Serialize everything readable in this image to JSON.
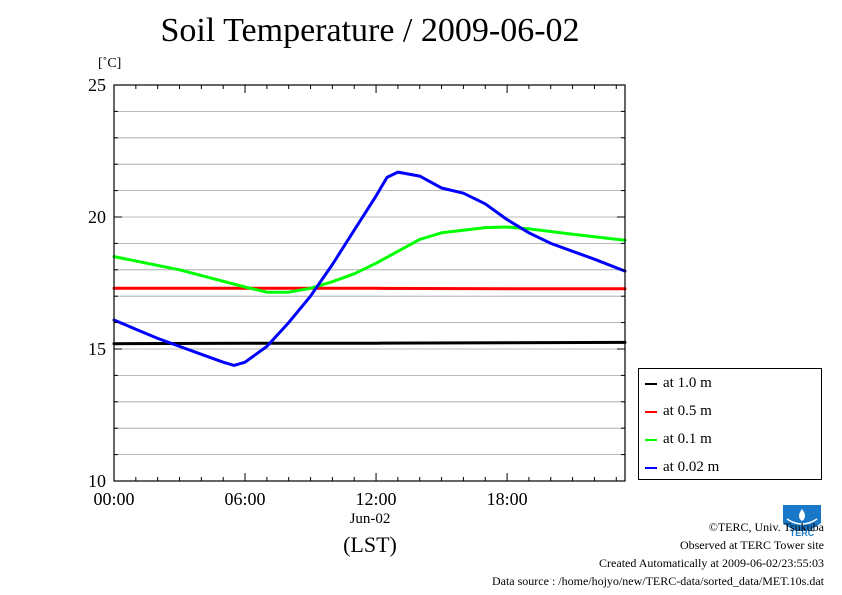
{
  "header": {
    "title": "Soil Temperature / 2009-06-02",
    "unit": "[˚C]"
  },
  "chart_data": {
    "type": "line",
    "title": "Soil Temperature / 2009-06-02",
    "ylabel": "[˚C]",
    "xlabel": "(LST)",
    "x_sublabel": "Jun-02",
    "xlim": [
      0,
      23.4
    ],
    "ylim": [
      10,
      25
    ],
    "x_ticks": [
      {
        "value": 0,
        "label": "00:00"
      },
      {
        "value": 6,
        "label": "06:00"
      },
      {
        "value": 12,
        "label": "12:00"
      },
      {
        "value": 18,
        "label": "18:00"
      }
    ],
    "y_ticks": [
      {
        "value": 10,
        "label": "10"
      },
      {
        "value": 15,
        "label": "15"
      },
      {
        "value": 20,
        "label": "20"
      },
      {
        "value": 25,
        "label": "25"
      }
    ],
    "grid": true,
    "legend_position": "bottom-right-outside",
    "series": [
      {
        "name": "at 1.0 m",
        "color": "#000000",
        "points": [
          [
            0,
            15.2
          ],
          [
            6,
            15.22
          ],
          [
            12,
            15.22
          ],
          [
            18,
            15.24
          ],
          [
            23.4,
            15.25
          ]
        ]
      },
      {
        "name": "at 0.5 m",
        "color": "#ff0000",
        "points": [
          [
            0,
            17.3
          ],
          [
            6,
            17.3
          ],
          [
            12,
            17.3
          ],
          [
            18,
            17.28
          ],
          [
            23.4,
            17.28
          ]
        ]
      },
      {
        "name": "at 0.1 m",
        "color": "#00ff00",
        "points": [
          [
            0,
            18.5
          ],
          [
            3,
            18.0
          ],
          [
            6,
            17.35
          ],
          [
            7,
            17.15
          ],
          [
            8,
            17.15
          ],
          [
            9,
            17.3
          ],
          [
            10,
            17.55
          ],
          [
            11,
            17.85
          ],
          [
            12,
            18.25
          ],
          [
            13,
            18.7
          ],
          [
            14,
            19.15
          ],
          [
            15,
            19.4
          ],
          [
            16,
            19.5
          ],
          [
            17,
            19.6
          ],
          [
            18,
            19.62
          ],
          [
            19,
            19.55
          ],
          [
            20,
            19.45
          ],
          [
            21,
            19.35
          ],
          [
            22,
            19.25
          ],
          [
            23.4,
            19.12
          ]
        ]
      },
      {
        "name": "at 0.02 m",
        "color": "#0000ff",
        "points": [
          [
            0,
            16.1
          ],
          [
            1,
            15.75
          ],
          [
            2,
            15.4
          ],
          [
            3,
            15.1
          ],
          [
            4,
            14.8
          ],
          [
            5,
            14.5
          ],
          [
            5.5,
            14.38
          ],
          [
            6,
            14.5
          ],
          [
            7,
            15.1
          ],
          [
            8,
            16.0
          ],
          [
            9,
            17.0
          ],
          [
            10,
            18.2
          ],
          [
            11,
            19.5
          ],
          [
            12,
            20.8
          ],
          [
            12.5,
            21.5
          ],
          [
            13,
            21.7
          ],
          [
            14,
            21.55
          ],
          [
            15,
            21.1
          ],
          [
            16,
            20.9
          ],
          [
            17,
            20.5
          ],
          [
            18,
            19.9
          ],
          [
            19,
            19.4
          ],
          [
            20,
            19.0
          ],
          [
            21,
            18.7
          ],
          [
            22,
            18.4
          ],
          [
            23.4,
            17.95
          ]
        ]
      }
    ]
  },
  "footer": {
    "copyright": "©TERC, Univ. Tsukuba",
    "site": "Observed at TERC Tower site",
    "created": "Created Automatically at 2009-06-02/23:55:03",
    "source": "Data source : /home/hojyo/new/TERC-data/sorted_data/MET.10s.dat"
  },
  "logo": {
    "text": "TERC"
  }
}
